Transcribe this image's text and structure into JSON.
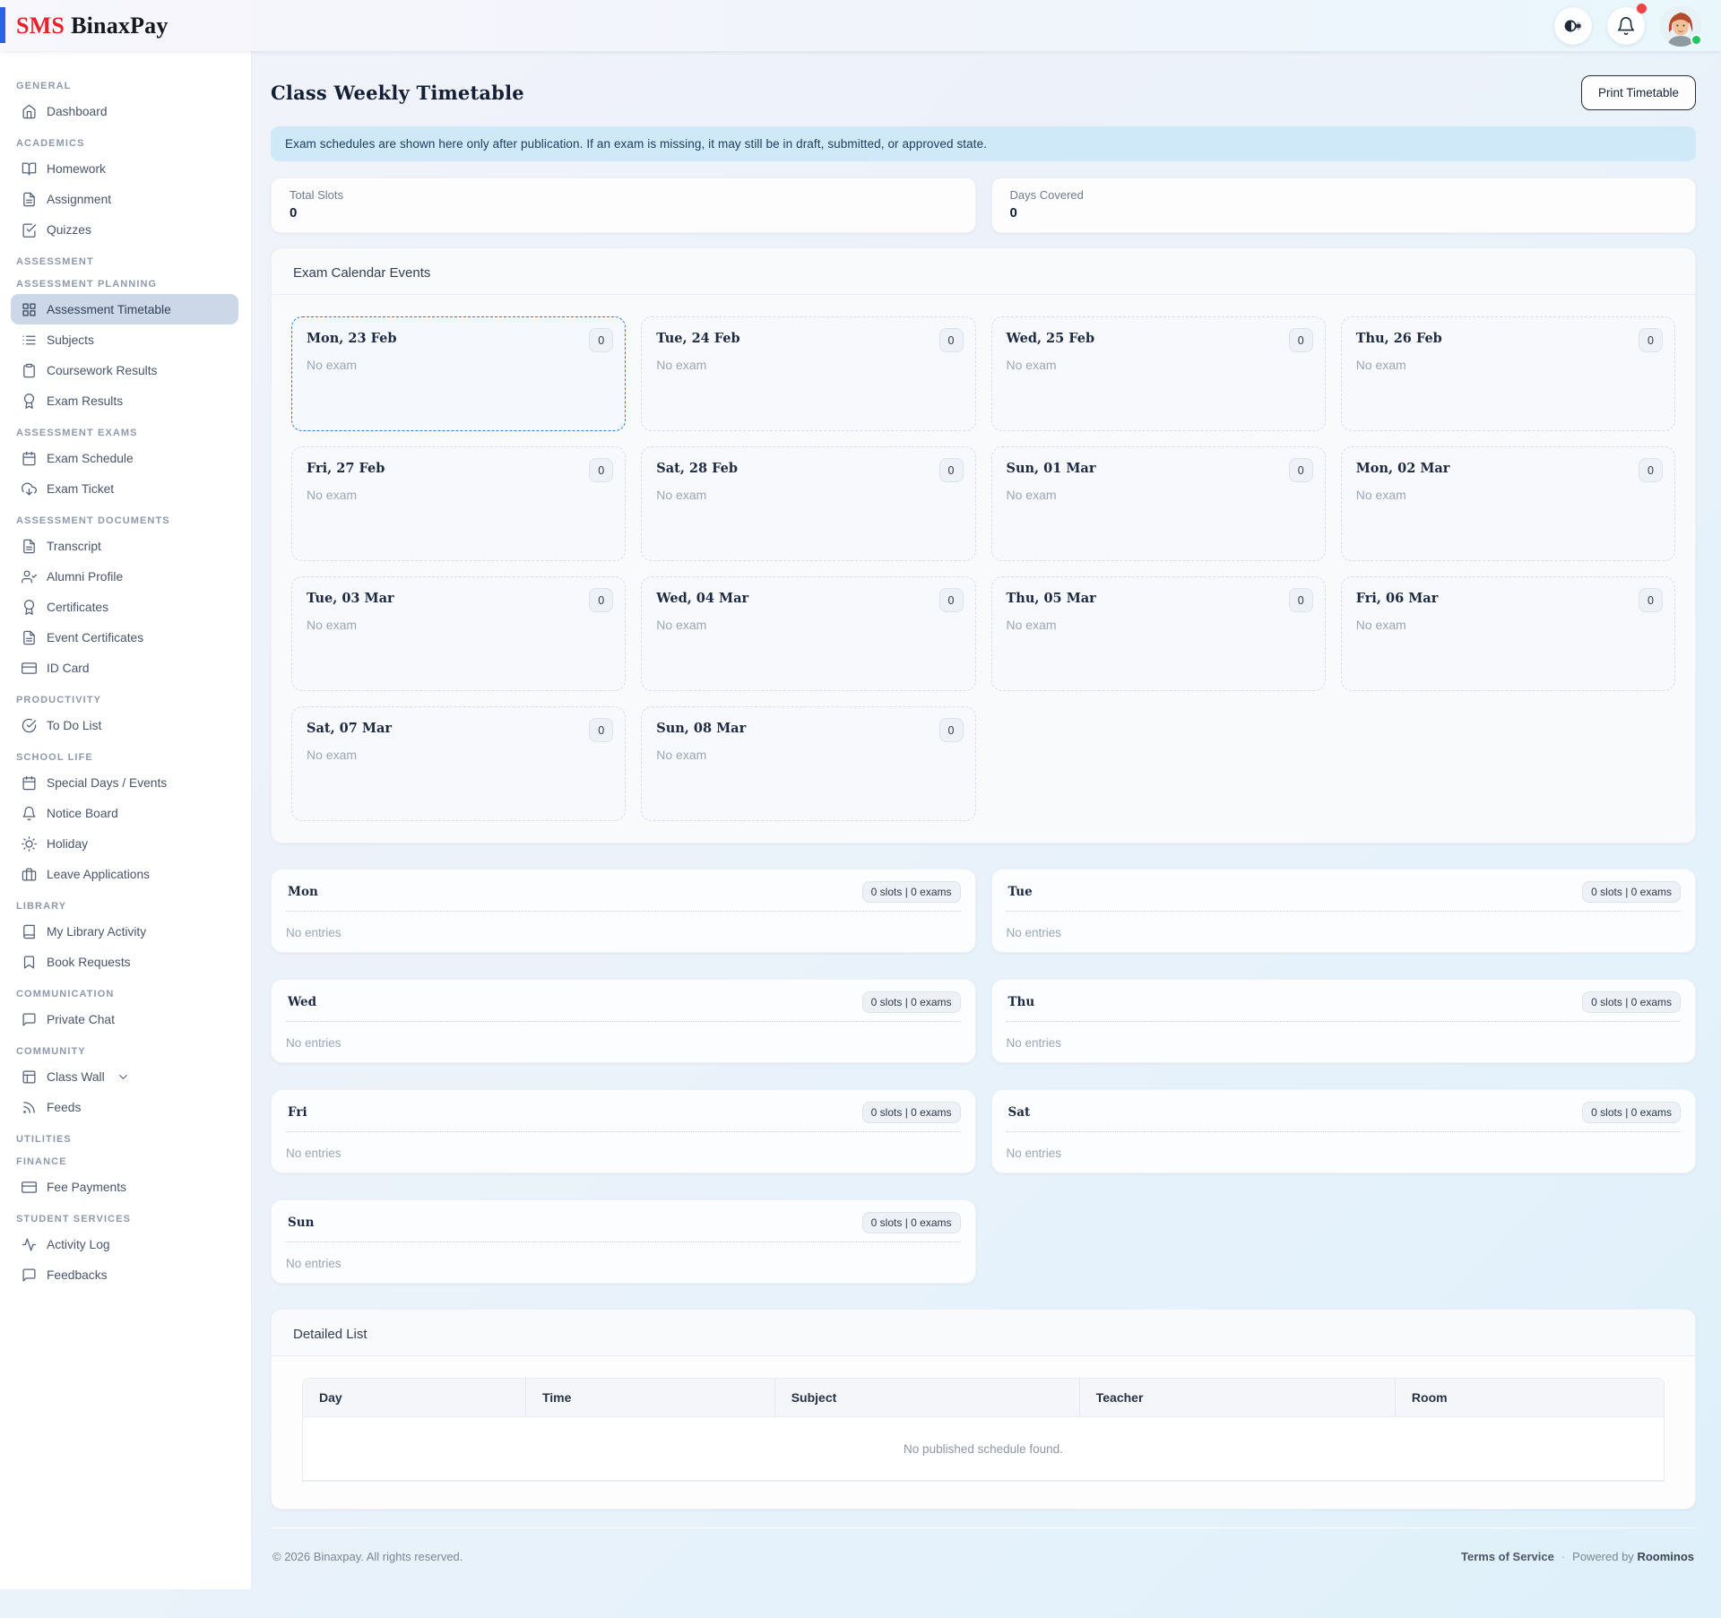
{
  "header": {
    "logo_prefix": "SMS",
    "logo_name": "BinaxPay",
    "accent_color": "#2563eb",
    "logo_prefix_color": "#e8232e"
  },
  "sidebar": {
    "sections": [
      {
        "label": "GENERAL",
        "items": [
          {
            "label": "Dashboard",
            "icon": "home-icon",
            "active": false
          }
        ]
      },
      {
        "label": "ACADEMICS",
        "items": [
          {
            "label": "Homework",
            "icon": "book-open-icon",
            "active": false
          },
          {
            "label": "Assignment",
            "icon": "file-text-icon",
            "active": false
          },
          {
            "label": "Quizzes",
            "icon": "check-square-icon",
            "active": false
          }
        ]
      },
      {
        "label": "ASSESSMENT",
        "items": []
      },
      {
        "label": "ASSESSMENT PLANNING",
        "items": [
          {
            "label": "Assessment Timetable",
            "icon": "grid-icon",
            "active": true
          },
          {
            "label": "Subjects",
            "icon": "list-icon",
            "active": false
          },
          {
            "label": "Coursework Results",
            "icon": "clipboard-icon",
            "active": false
          },
          {
            "label": "Exam Results",
            "icon": "award-icon",
            "active": false
          }
        ]
      },
      {
        "label": "ASSESSMENT EXAMS",
        "items": [
          {
            "label": "Exam Schedule",
            "icon": "calendar-icon",
            "active": false
          },
          {
            "label": "Exam Ticket",
            "icon": "download-cloud-icon",
            "active": false
          }
        ]
      },
      {
        "label": "ASSESSMENT DOCUMENTS",
        "items": [
          {
            "label": "Transcript",
            "icon": "file-text-icon",
            "active": false
          },
          {
            "label": "Alumni Profile",
            "icon": "user-check-icon",
            "active": false
          },
          {
            "label": "Certificates",
            "icon": "award-icon",
            "active": false
          },
          {
            "label": "Event Certificates",
            "icon": "file-text-icon",
            "active": false
          },
          {
            "label": "ID Card",
            "icon": "credit-card-icon",
            "active": false
          }
        ]
      },
      {
        "label": "PRODUCTIVITY",
        "items": [
          {
            "label": "To Do List",
            "icon": "check-circle-icon",
            "active": false
          }
        ]
      },
      {
        "label": "SCHOOL LIFE",
        "items": [
          {
            "label": "Special Days / Events",
            "icon": "calendar-icon",
            "active": false
          },
          {
            "label": "Notice Board",
            "icon": "bell-icon",
            "active": false
          },
          {
            "label": "Holiday",
            "icon": "sun-icon",
            "active": false
          },
          {
            "label": "Leave Applications",
            "icon": "briefcase-icon",
            "active": false
          }
        ]
      },
      {
        "label": "LIBRARY",
        "items": [
          {
            "label": "My Library Activity",
            "icon": "book-icon",
            "active": false
          },
          {
            "label": "Book Requests",
            "icon": "bookmark-icon",
            "active": false
          }
        ]
      },
      {
        "label": "COMMUNICATION",
        "items": [
          {
            "label": "Private Chat",
            "icon": "message-square-icon",
            "active": false
          }
        ]
      },
      {
        "label": "COMMUNITY",
        "items": [
          {
            "label": "Class Wall",
            "icon": "layout-icon",
            "active": false,
            "chevron": true
          },
          {
            "label": "Feeds",
            "icon": "rss-icon",
            "active": false
          }
        ]
      },
      {
        "label": "UTILITIES",
        "items": []
      },
      {
        "label": "FINANCE",
        "items": [
          {
            "label": "Fee Payments",
            "icon": "credit-card-icon",
            "active": false
          }
        ]
      },
      {
        "label": "STUDENT SERVICES",
        "items": [
          {
            "label": "Activity Log",
            "icon": "activity-icon",
            "active": false
          },
          {
            "label": "Feedbacks",
            "icon": "message-square-icon",
            "active": false
          }
        ]
      }
    ]
  },
  "page": {
    "title": "Class Weekly Timetable",
    "print_button": "Print Timetable",
    "banner": "Exam schedules are shown here only after publication. If an exam is missing, it may still be in draft, submitted, or approved state.",
    "stats": [
      {
        "label": "Total Slots",
        "value": "0"
      },
      {
        "label": "Days Covered",
        "value": "0"
      }
    ]
  },
  "calendar": {
    "title": "Exam Calendar Events",
    "days": [
      {
        "date": "Mon, 23 Feb",
        "count": "0",
        "note": "No exam",
        "highlight": true
      },
      {
        "date": "Tue, 24 Feb",
        "count": "0",
        "note": "No exam",
        "highlight": false
      },
      {
        "date": "Wed, 25 Feb",
        "count": "0",
        "note": "No exam",
        "highlight": false
      },
      {
        "date": "Thu, 26 Feb",
        "count": "0",
        "note": "No exam",
        "highlight": false
      },
      {
        "date": "Fri, 27 Feb",
        "count": "0",
        "note": "No exam",
        "highlight": false
      },
      {
        "date": "Sat, 28 Feb",
        "count": "0",
        "note": "No exam",
        "highlight": false
      },
      {
        "date": "Sun, 01 Mar",
        "count": "0",
        "note": "No exam",
        "highlight": false
      },
      {
        "date": "Mon, 02 Mar",
        "count": "0",
        "note": "No exam",
        "highlight": false
      },
      {
        "date": "Tue, 03 Mar",
        "count": "0",
        "note": "No exam",
        "highlight": false
      },
      {
        "date": "Wed, 04 Mar",
        "count": "0",
        "note": "No exam",
        "highlight": false
      },
      {
        "date": "Thu, 05 Mar",
        "count": "0",
        "note": "No exam",
        "highlight": false
      },
      {
        "date": "Fri, 06 Mar",
        "count": "0",
        "note": "No exam",
        "highlight": false
      },
      {
        "date": "Sat, 07 Mar",
        "count": "0",
        "note": "No exam",
        "highlight": false
      },
      {
        "date": "Sun, 08 Mar",
        "count": "0",
        "note": "No exam",
        "highlight": false
      }
    ]
  },
  "weekly": {
    "days": [
      {
        "label": "Mon",
        "badge": "0 slots | 0 exams",
        "empty": "No entries"
      },
      {
        "label": "Tue",
        "badge": "0 slots | 0 exams",
        "empty": "No entries"
      },
      {
        "label": "Wed",
        "badge": "0 slots | 0 exams",
        "empty": "No entries"
      },
      {
        "label": "Thu",
        "badge": "0 slots | 0 exams",
        "empty": "No entries"
      },
      {
        "label": "Fri",
        "badge": "0 slots | 0 exams",
        "empty": "No entries"
      },
      {
        "label": "Sat",
        "badge": "0 slots | 0 exams",
        "empty": "No entries"
      },
      {
        "label": "Sun",
        "badge": "0 slots | 0 exams",
        "empty": "No entries"
      }
    ]
  },
  "detailed": {
    "title": "Detailed List",
    "columns": [
      "Day",
      "Time",
      "Subject",
      "Teacher",
      "Room"
    ],
    "empty_message": "No published schedule found."
  },
  "footer": {
    "copyright": "© 2026 Binaxpay. All rights reserved.",
    "terms": "Terms of Service",
    "separator": "·",
    "powered_prefix": "Powered by",
    "powered_name": "Roominos"
  }
}
